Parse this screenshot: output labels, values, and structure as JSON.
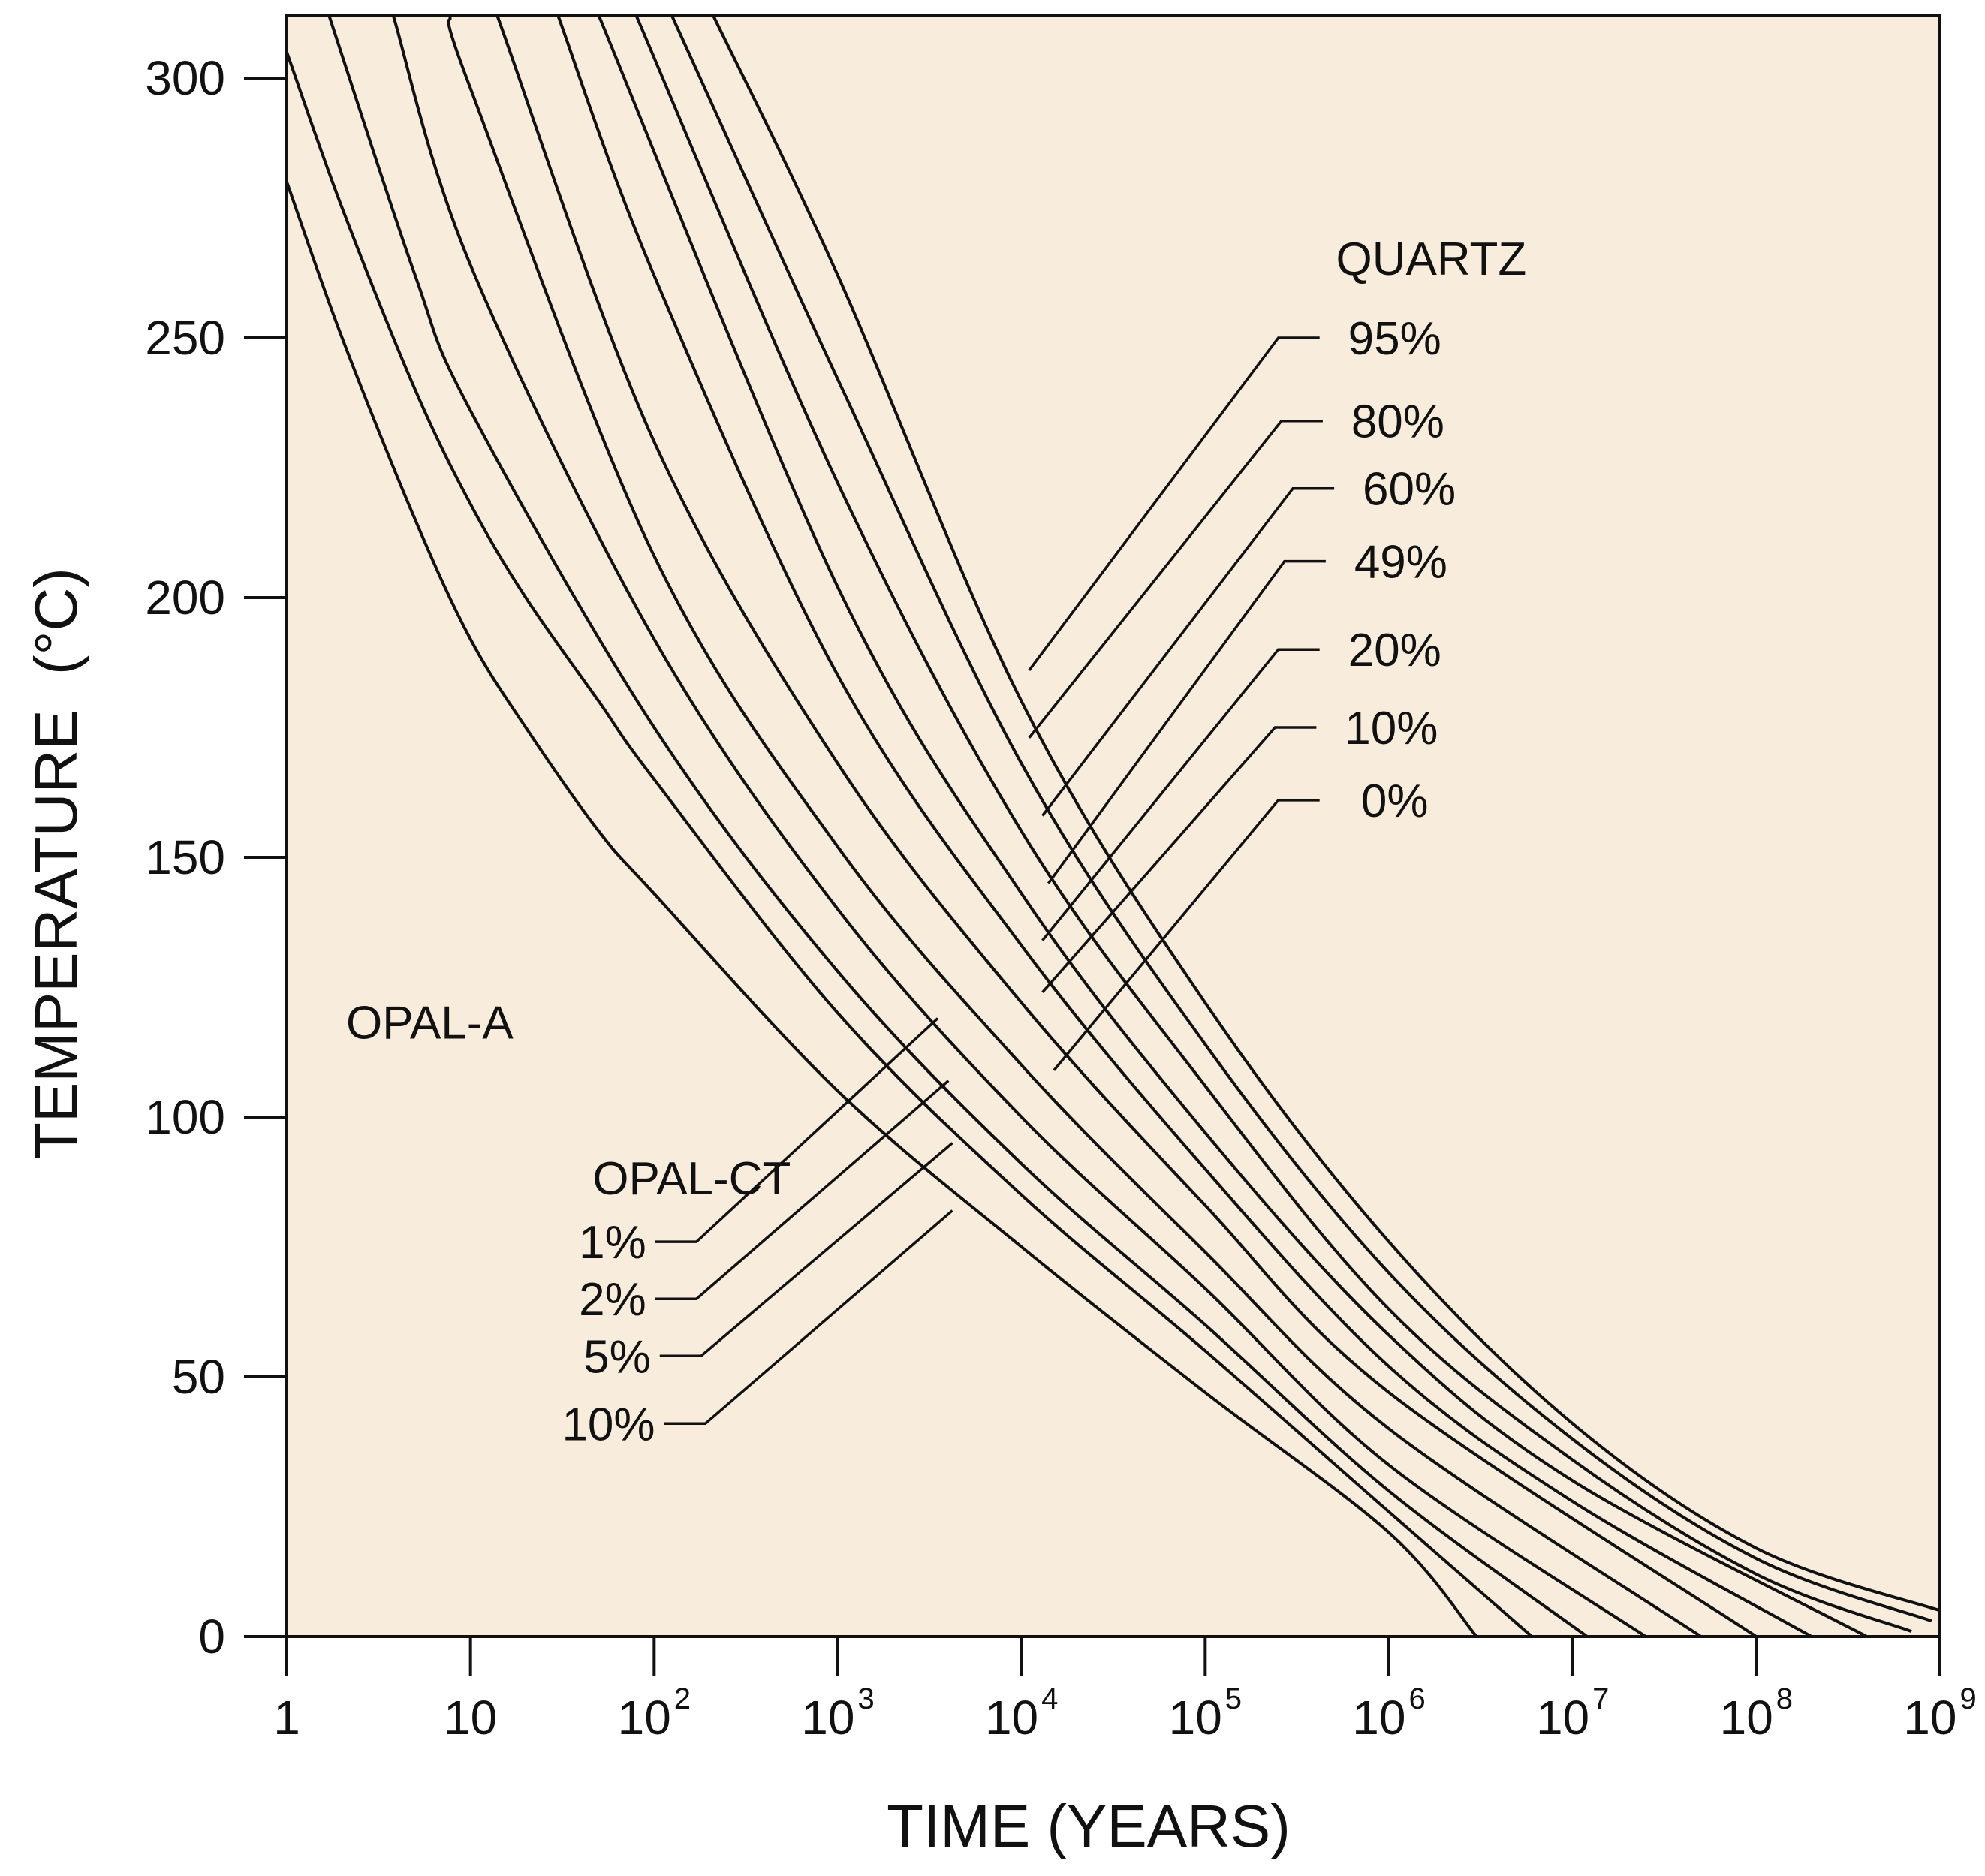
{
  "chart_data": {
    "type": "line",
    "title": "",
    "xlabel": "TIME (YEARS)",
    "ylabel": "TEMPERATURE",
    "ylabel_unit": "(°C)",
    "x_scale": "log",
    "xlim": [
      1,
      1000000000
    ],
    "ylim": [
      0,
      312
    ],
    "background": "#f8ecdc",
    "line_color": "#111111",
    "x_ticks": [
      {
        "value": 1,
        "base": "1",
        "exp": ""
      },
      {
        "value": 10,
        "base": "10",
        "exp": ""
      },
      {
        "value": 100,
        "base": "10",
        "exp": "2"
      },
      {
        "value": 1000,
        "base": "10",
        "exp": "3"
      },
      {
        "value": 10000,
        "base": "10",
        "exp": "4"
      },
      {
        "value": 100000,
        "base": "10",
        "exp": "5"
      },
      {
        "value": 1000000,
        "base": "10",
        "exp": "6"
      },
      {
        "value": 10000000,
        "base": "10",
        "exp": "7"
      },
      {
        "value": 100000000,
        "base": "10",
        "exp": "8"
      },
      {
        "value": 1000000000,
        "base": "10",
        "exp": "9"
      }
    ],
    "y_ticks": [
      0,
      50,
      100,
      150,
      200,
      250,
      300
    ],
    "region_labels": {
      "opal_a": "OPAL-A",
      "opal_ct": "OPAL-CT",
      "quartz": "QUARTZ"
    },
    "series": [
      {
        "name": "OPAL-CT 1%",
        "points": [
          [
            1,
            280
          ],
          [
            2,
            250
          ],
          [
            5,
            215
          ],
          [
            10,
            192
          ],
          [
            20,
            175
          ],
          [
            50,
            155
          ],
          [
            100,
            143
          ],
          [
            1000,
            105
          ],
          [
            10000,
            75
          ],
          [
            100000,
            47
          ],
          [
            1000000,
            20
          ],
          [
            3000000,
            0
          ]
        ]
      },
      {
        "name": "OPAL-CT 2%",
        "points": [
          [
            1,
            305
          ],
          [
            2,
            275
          ],
          [
            5,
            240
          ],
          [
            10,
            218
          ],
          [
            20,
            200
          ],
          [
            50,
            180
          ],
          [
            100,
            165
          ],
          [
            1000,
            120
          ],
          [
            10000,
            85
          ],
          [
            100000,
            55
          ],
          [
            1000000,
            24
          ],
          [
            6000000,
            0
          ]
        ]
      },
      {
        "name": "OPAL-CT 5%",
        "points": [
          [
            1.7,
            312
          ],
          [
            5,
            262
          ],
          [
            10,
            236
          ],
          [
            100,
            175
          ],
          [
            1000,
            128
          ],
          [
            10000,
            91
          ],
          [
            100000,
            60
          ],
          [
            1000000,
            28
          ],
          [
            12000000,
            0
          ]
        ]
      },
      {
        "name": "OPAL-CT 10%",
        "points": [
          [
            3.8,
            312
          ],
          [
            10,
            264
          ],
          [
            100,
            192
          ],
          [
            1000,
            140
          ],
          [
            10000,
            100
          ],
          [
            100000,
            67
          ],
          [
            1000000,
            33
          ],
          [
            25000000,
            0
          ]
        ]
      },
      {
        "name": "QUARTZ 0%",
        "points": [
          [
            7.7,
            312
          ],
          [
            10,
            298
          ],
          [
            100,
            208
          ],
          [
            1000,
            152
          ],
          [
            10000,
            110
          ],
          [
            100000,
            74
          ],
          [
            1000000,
            40
          ],
          [
            50000000,
            0
          ]
        ]
      },
      {
        "name": "QUARTZ 10%",
        "points": [
          [
            14,
            312
          ],
          [
            100,
            230
          ],
          [
            1000,
            168
          ],
          [
            10000,
            122
          ],
          [
            100000,
            83
          ],
          [
            1000000,
            47
          ],
          [
            100000000,
            0
          ]
        ]
      },
      {
        "name": "QUARTZ 20%",
        "points": [
          [
            30,
            312
          ],
          [
            100,
            262
          ],
          [
            1000,
            185
          ],
          [
            10000,
            133
          ],
          [
            100000,
            90
          ],
          [
            1000000,
            52
          ],
          [
            10000000,
            26
          ],
          [
            200000000,
            0
          ]
        ]
      },
      {
        "name": "QUARTZ 49%",
        "points": [
          [
            50,
            312
          ],
          [
            1000,
            202
          ],
          [
            10000,
            143
          ],
          [
            100000,
            97
          ],
          [
            1000000,
            58
          ],
          [
            10000000,
            30
          ],
          [
            400000000,
            0
          ]
        ]
      },
      {
        "name": "QUARTZ 60%",
        "points": [
          [
            80,
            312
          ],
          [
            1000,
            222
          ],
          [
            10000,
            155
          ],
          [
            100000,
            106
          ],
          [
            1000000,
            63
          ],
          [
            10000000,
            34
          ],
          [
            100000000,
            12
          ],
          [
            700000000,
            1
          ]
        ]
      },
      {
        "name": "QUARTZ 80%",
        "points": [
          [
            125,
            312
          ],
          [
            1000,
            242
          ],
          [
            10000,
            168
          ],
          [
            100000,
            114
          ],
          [
            1000000,
            70
          ],
          [
            10000000,
            38
          ],
          [
            100000000,
            15
          ],
          [
            900000000,
            3
          ]
        ]
      },
      {
        "name": "QUARTZ 95%",
        "points": [
          [
            210,
            312
          ],
          [
            1000,
            262
          ],
          [
            10000,
            180
          ],
          [
            100000,
            122
          ],
          [
            1000000,
            76
          ],
          [
            10000000,
            41
          ],
          [
            100000000,
            17
          ],
          [
            1000000000,
            5
          ]
        ]
      }
    ],
    "annotations": [
      {
        "label": "95%",
        "group": "quartz",
        "leader_from": [
          11000,
          186
        ],
        "leader_to": [
          250000,
          250
        ],
        "text_at": [
          2000000,
          250
        ]
      },
      {
        "label": "80%",
        "group": "quartz",
        "leader_from": [
          11000,
          173
        ],
        "leader_to": [
          260000,
          234
        ],
        "text_at": [
          2000000,
          234
        ]
      },
      {
        "label": "60%",
        "group": "quartz",
        "leader_from": [
          13000,
          158
        ],
        "leader_to": [
          300000,
          221
        ],
        "text_at": [
          2000000,
          221
        ]
      },
      {
        "label": "49%",
        "group": "quartz",
        "leader_from": [
          14000,
          145
        ],
        "leader_to": [
          270000,
          207
        ],
        "text_at": [
          2000000,
          207
        ]
      },
      {
        "label": "20%",
        "group": "quartz",
        "leader_from": [
          13000,
          134
        ],
        "leader_to": [
          250000,
          190
        ],
        "text_at": [
          2000000,
          190
        ]
      },
      {
        "label": "10%",
        "group": "quartz",
        "leader_from": [
          13000,
          124
        ],
        "leader_to": [
          240000,
          175
        ],
        "text_at": [
          2000000,
          175
        ]
      },
      {
        "label": "0%",
        "group": "quartz",
        "leader_from": [
          15000,
          109
        ],
        "leader_to": [
          250000,
          161
        ],
        "text_at": [
          2000000,
          161
        ]
      },
      {
        "label": "1%",
        "group": "opal_ct",
        "leader_from": [
          3500,
          119
        ],
        "leader_to": [
          170,
          76
        ],
        "text_at": [
          50,
          76
        ]
      },
      {
        "label": "2%",
        "group": "opal_ct",
        "leader_from": [
          4000,
          107
        ],
        "leader_to": [
          170,
          65
        ],
        "text_at": [
          50,
          65
        ]
      },
      {
        "label": "5%",
        "group": "opal_ct",
        "leader_from": [
          4200,
          95
        ],
        "leader_to": [
          180,
          54
        ],
        "text_at": [
          50,
          54
        ]
      },
      {
        "label": "10%",
        "group": "opal_ct",
        "leader_from": [
          4200,
          82
        ],
        "leader_to": [
          190,
          41
        ],
        "text_at": [
          50,
          41
        ]
      }
    ],
    "region_label_positions": {
      "opal_a": [
        6,
        118
      ],
      "opal_ct": [
        160,
        88
      ],
      "quartz": [
        1700000,
        265
      ]
    }
  }
}
